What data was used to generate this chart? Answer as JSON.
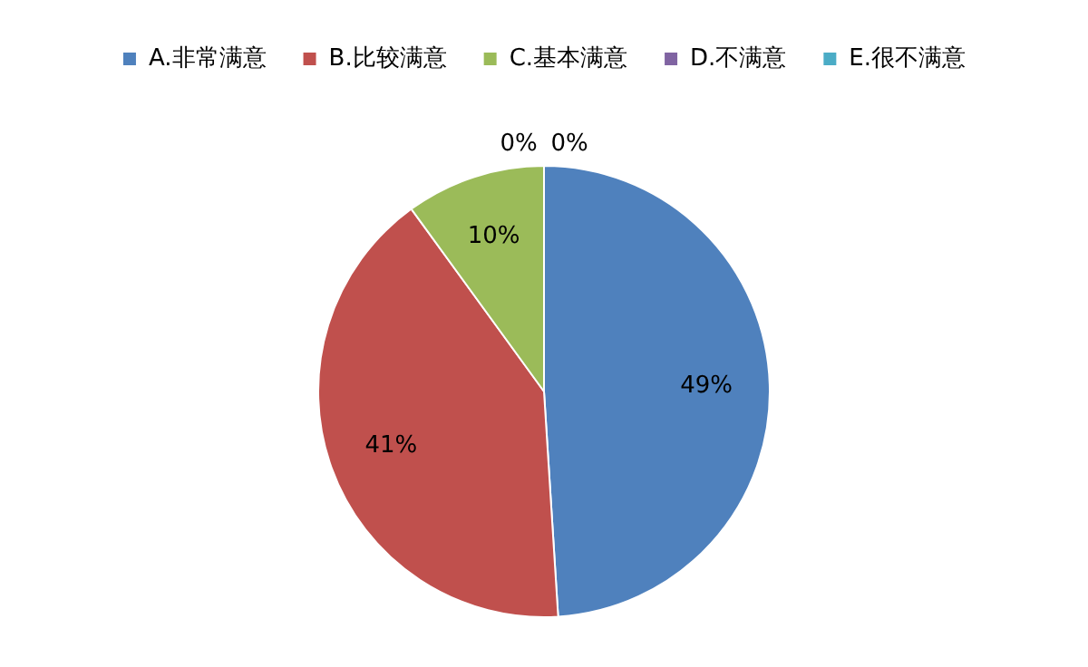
{
  "chart_data": {
    "type": "pie",
    "categories": [
      "A.非常满意",
      "B.比较满意",
      "C.基本满意",
      "D.不满意",
      "E.很不满意"
    ],
    "values": [
      49,
      41,
      10,
      0,
      0
    ],
    "colors": [
      "#4f81bd",
      "#c0504d",
      "#9bbb59",
      "#8064a2",
      "#4bacc6"
    ],
    "value_labels": [
      "49%",
      "41%",
      "10%",
      "0%",
      "0%"
    ],
    "legend": "top"
  }
}
